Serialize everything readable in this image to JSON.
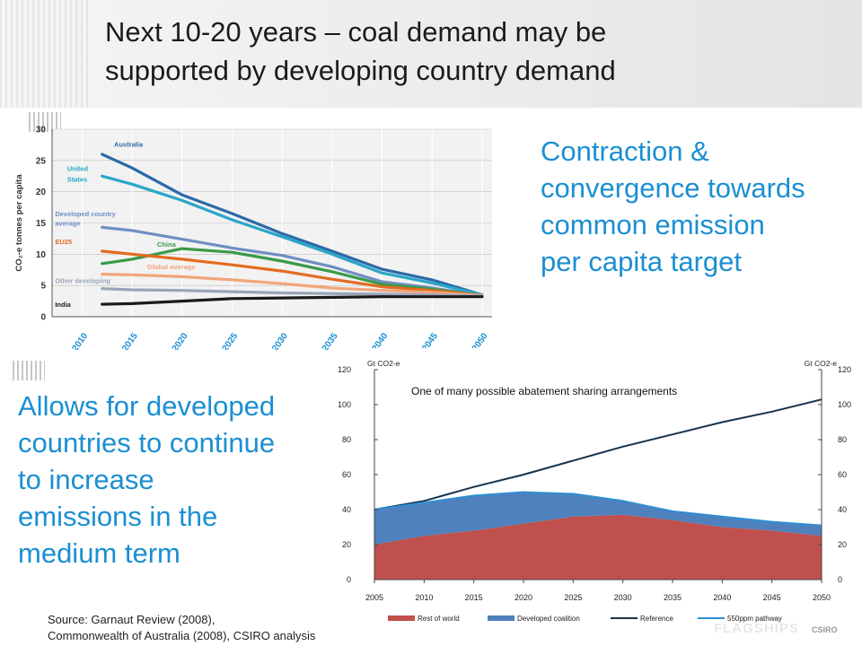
{
  "slide": {
    "title_line1": "Next 10-20 years – coal demand may be",
    "title_line2": "supported by developing country demand",
    "right_text": [
      "Contraction &",
      "convergence towards",
      "common emission",
      "per capita target"
    ],
    "left_text": [
      "Allows for developed",
      "countries to continue",
      "to increase",
      "emissions in the",
      "medium term"
    ],
    "source_line1": "Source: Garnaut Review (2008),",
    "source_line2": "Commonwealth of Australia (2008), CSIRO analysis",
    "footer_logo": "FLAGSHIPS",
    "footer_logo2": "CSIRO"
  },
  "chart_data": [
    {
      "type": "line",
      "title": "",
      "ylabel": "CO₂-e tonnes per capita",
      "ylim": [
        0,
        30
      ],
      "y_ticks": [
        0,
        5,
        10,
        15,
        20,
        25,
        30
      ],
      "x": [
        2012,
        2015,
        2020,
        2025,
        2030,
        2035,
        2040,
        2045,
        2050
      ],
      "x_tick_labels": [
        "2010",
        "2015",
        "2020",
        "2025",
        "2030",
        "2035",
        "2040",
        "2045",
        "2050"
      ],
      "x_tick_values": [
        2010,
        2015,
        2020,
        2025,
        2030,
        2035,
        2040,
        2045,
        2050
      ],
      "xlim": [
        2007,
        2051
      ],
      "colors": {
        "plot_bg": "#f2f2f2",
        "grid": "#ffffff"
      },
      "series": [
        {
          "name": "Australia",
          "color": "#2b6aa8",
          "values": [
            26,
            23.8,
            19.5,
            16.5,
            13.3,
            10.5,
            7.6,
            5.9,
            3.5
          ]
        },
        {
          "name": "United States",
          "color": "#2aa6c8",
          "values": [
            22.5,
            21.2,
            18.6,
            15.5,
            12.8,
            10,
            7,
            5.4,
            3.5
          ]
        },
        {
          "name": "Developed country average",
          "color": "#6f8fc3",
          "values": [
            14.3,
            13.8,
            12.4,
            11,
            9.8,
            8,
            5.6,
            4.6,
            3.4
          ]
        },
        {
          "name": "China",
          "color": "#3a9a48",
          "values": [
            8.5,
            9.2,
            10.9,
            10.3,
            8.9,
            7.2,
            5.2,
            4.4,
            3.4
          ]
        },
        {
          "name": "EU25",
          "color": "#e36b1f",
          "values": [
            10.5,
            10,
            9.2,
            8.3,
            7.3,
            6,
            4.8,
            4.2,
            3.4
          ]
        },
        {
          "name": "Global average",
          "color": "#f2a57a",
          "values": [
            6.8,
            6.7,
            6.4,
            5.9,
            5.3,
            4.6,
            4.2,
            3.9,
            3.4
          ]
        },
        {
          "name": "Other developing",
          "color": "#9aa5b8",
          "values": [
            4.5,
            4.3,
            4.2,
            4,
            3.8,
            3.7,
            3.6,
            3.5,
            3.3
          ]
        },
        {
          "name": "India",
          "color": "#1a1a1a",
          "values": [
            2,
            2.1,
            2.5,
            2.9,
            3,
            3.1,
            3.2,
            3.2,
            3.2
          ]
        }
      ]
    },
    {
      "type": "area",
      "title": "One of many possible abatement sharing arrangements",
      "ylabel_left": "Gt CO2-e",
      "ylabel_right": "Gt CO2-e",
      "ylim": [
        0,
        120
      ],
      "y_ticks": [
        0,
        20,
        40,
        60,
        80,
        100,
        120
      ],
      "x": [
        2005,
        2010,
        2015,
        2020,
        2025,
        2030,
        2035,
        2040,
        2045,
        2050
      ],
      "xlim": [
        2005,
        2050
      ],
      "x_ticks": [
        2005,
        2010,
        2015,
        2020,
        2025,
        2030,
        2035,
        2040,
        2045,
        2050
      ],
      "series": [
        {
          "name": "Rest of world",
          "color": "#c0504d",
          "kind": "area",
          "values": [
            20,
            25,
            28,
            32,
            36,
            37,
            34,
            30,
            28,
            25
          ]
        },
        {
          "name": "Developed coalition",
          "color": "#4f81bd",
          "kind": "area",
          "values": [
            20,
            19,
            20,
            18,
            13,
            8,
            5,
            6,
            5,
            6
          ]
        },
        {
          "name": "Reference",
          "color": "#17324d",
          "kind": "line",
          "values": [
            40,
            45,
            53,
            60,
            68,
            76,
            83,
            90,
            96,
            103
          ]
        },
        {
          "name": "550ppm pathway",
          "color": "#2f8fd0",
          "kind": "line",
          "values": [
            40,
            44,
            48,
            50,
            49,
            45,
            39,
            36,
            33,
            31
          ]
        }
      ]
    }
  ]
}
